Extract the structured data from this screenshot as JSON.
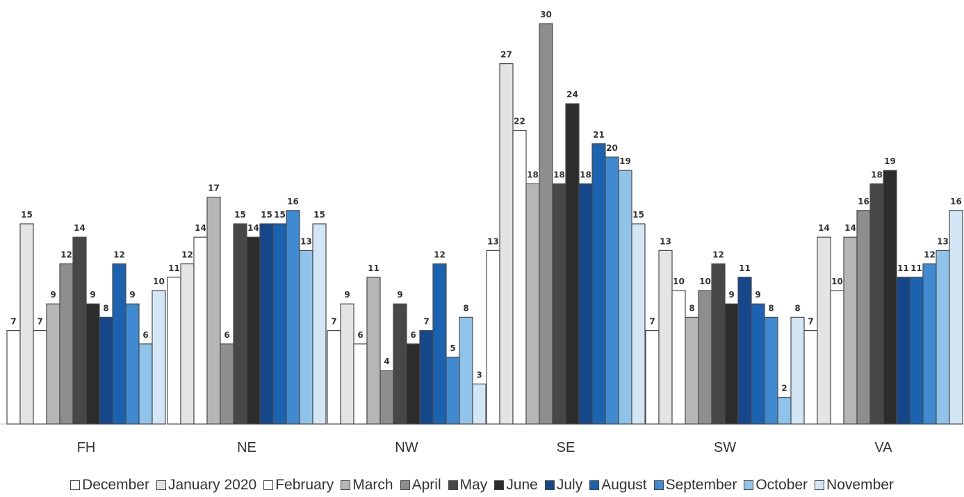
{
  "chart_data": {
    "type": "bar",
    "title": "",
    "xlabel": "",
    "ylabel": "",
    "ylim": [
      0,
      30
    ],
    "grid": false,
    "legend_position": "bottom",
    "categories": [
      "FH",
      "NE",
      "NW",
      "SE",
      "SW",
      "VA"
    ],
    "series": [
      {
        "name": "December",
        "color": "#ffffff",
        "values": [
          7,
          11,
          7,
          13,
          7,
          7
        ]
      },
      {
        "name": "January 2020",
        "color": "#e4e4e4",
        "values": [
          15,
          12,
          9,
          27,
          13,
          14
        ]
      },
      {
        "name": "February",
        "color": "#ffffff",
        "values": [
          7,
          14,
          6,
          22,
          10,
          10
        ]
      },
      {
        "name": "March",
        "color": "#b6b6b6",
        "values": [
          9,
          17,
          11,
          18,
          8,
          14
        ]
      },
      {
        "name": "April",
        "color": "#8e8e8e",
        "values": [
          12,
          6,
          4,
          30,
          10,
          16
        ]
      },
      {
        "name": "May",
        "color": "#474747",
        "values": [
          14,
          15,
          9,
          18,
          12,
          18
        ]
      },
      {
        "name": "June",
        "color": "#2c2c2c",
        "values": [
          9,
          14,
          6,
          24,
          9,
          19
        ]
      },
      {
        "name": "July",
        "color": "#15478a",
        "values": [
          8,
          15,
          7,
          18,
          11,
          11
        ]
      },
      {
        "name": "August",
        "color": "#1b62b0",
        "values": [
          12,
          15,
          12,
          21,
          9,
          11
        ]
      },
      {
        "name": "September",
        "color": "#3f8ad0",
        "values": [
          9,
          16,
          5,
          20,
          8,
          12
        ]
      },
      {
        "name": "October",
        "color": "#8fc3ea",
        "values": [
          6,
          13,
          8,
          19,
          2,
          13
        ]
      },
      {
        "name": "November",
        "color": "#d3e6f5",
        "values": [
          10,
          15,
          3,
          15,
          8,
          16
        ]
      }
    ]
  }
}
